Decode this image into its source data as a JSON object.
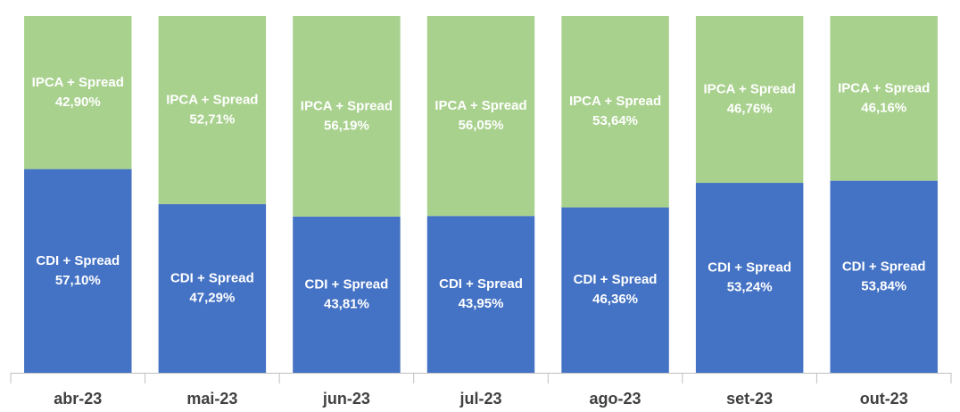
{
  "chart_data": {
    "type": "stacked_bar",
    "categories": [
      "abr-23",
      "mai-23",
      "jun-23",
      "jul-23",
      "ago-23",
      "set-23",
      "out-23"
    ],
    "series": [
      {
        "name": "CDI + Spread",
        "color": "#4472c4",
        "values": [
          57.1,
          47.29,
          43.81,
          43.95,
          46.36,
          53.24,
          53.84
        ],
        "value_labels": [
          "57,10%",
          "47,29%",
          "43,81%",
          "43,95%",
          "46,36%",
          "53,24%",
          "53,84%"
        ]
      },
      {
        "name": "IPCA + Spread",
        "color": "#a9d18e",
        "values": [
          42.9,
          52.71,
          56.19,
          56.05,
          53.64,
          46.76,
          46.16
        ],
        "value_labels": [
          "42,90%",
          "52,71%",
          "56,19%",
          "56,05%",
          "53,64%",
          "46,76%",
          "46,16%"
        ]
      }
    ],
    "ylim": [
      0,
      100
    ]
  }
}
